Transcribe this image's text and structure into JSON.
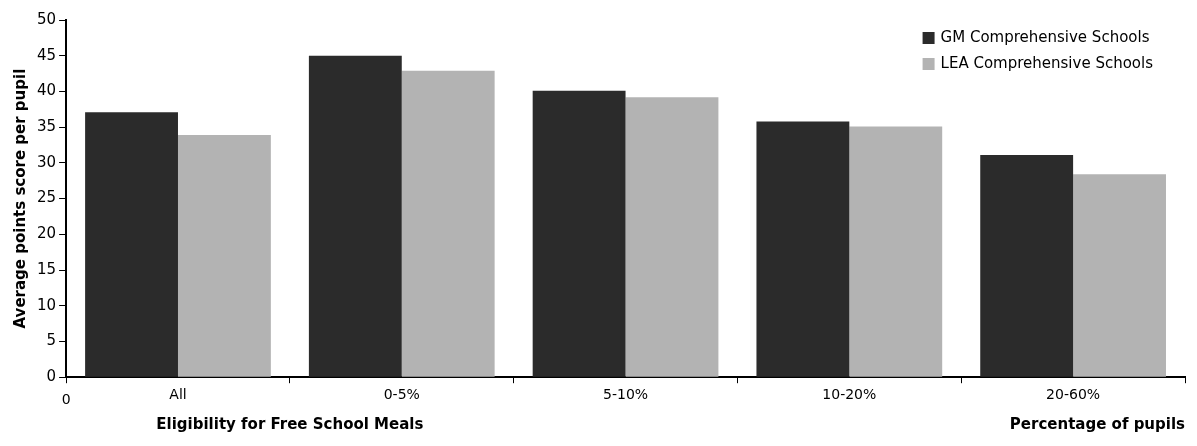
{
  "chart_data": {
    "type": "bar",
    "xlabel": "Eligibility for Free School Meals",
    "ylabel": "Average points score per pupil",
    "categories": [
      "All",
      "0-5%",
      "5-10%",
      "10-20%",
      "20-60%"
    ],
    "series": [
      {
        "name": "GM Comprehensive Schools",
        "color": "#2b2b2b",
        "values": [
          37.1,
          45.0,
          40.1,
          35.8,
          31.1
        ]
      },
      {
        "name": "LEA Comprehensive Schools",
        "color": "#b3b3b3",
        "values": [
          33.9,
          42.9,
          39.2,
          35.1,
          28.4
        ]
      }
    ],
    "ylim": [
      0,
      50
    ],
    "yticks": [
      0,
      5,
      10,
      15,
      20,
      25,
      30,
      35,
      40,
      45,
      50
    ],
    "grid": false,
    "legend": "top right",
    "annotations": [
      "0",
      "Percentage of pupils"
    ]
  }
}
